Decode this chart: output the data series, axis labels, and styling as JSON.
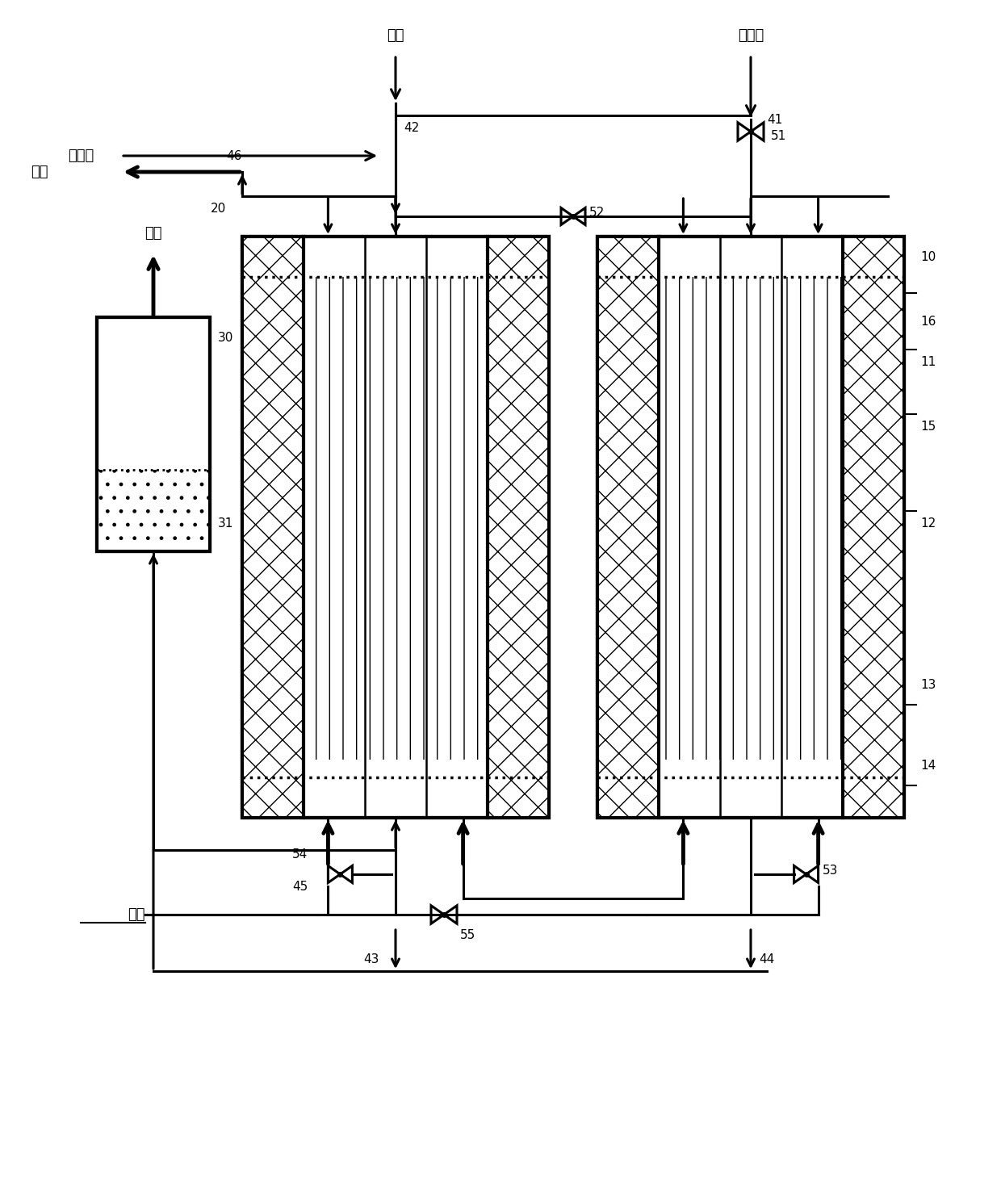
{
  "fig_width": 12.4,
  "fig_height": 14.63,
  "bg_color": "#ffffff",
  "line_color": "#000000",
  "hatch_diamond": "x",
  "hatch_dot": ".",
  "hatch_vert": "|||",
  "labels": {
    "fuel_top": "燃料",
    "steam_top": "水蒸气",
    "steam_left": "水蒸气",
    "smoke": "烟气",
    "hydrogen": "氢气",
    "air": "空气"
  },
  "numbers": {
    "n10": "10",
    "n11": "11",
    "n12": "12",
    "n13": "13",
    "n14": "14",
    "n15": "15",
    "n16": "16",
    "n20": "20",
    "n30": "30",
    "n31": "31",
    "n41": "41",
    "n42": "42",
    "n43": "43",
    "n44": "44",
    "n45": "45",
    "n46": "46",
    "n51": "51",
    "n52": "52",
    "n53": "53",
    "n54": "54",
    "n55": "55"
  }
}
